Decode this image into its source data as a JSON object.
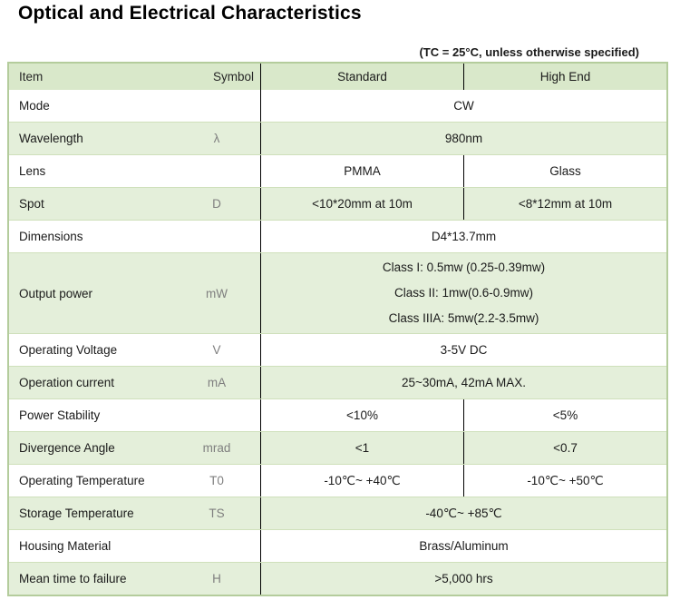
{
  "page": {
    "title": "Optical and Electrical Characteristics",
    "note": "(TC = 25°C, unless otherwise specified)"
  },
  "table": {
    "headers": {
      "item": "Item",
      "symbol": "Symbol",
      "standard": "Standard",
      "high_end": "High End"
    },
    "rows": [
      {
        "item": "Mode",
        "symbol": "",
        "span": "CW",
        "shade": false
      },
      {
        "item": "Wavelength",
        "symbol": "λ",
        "span": "980nm",
        "shade": true
      },
      {
        "item": "Lens",
        "symbol": "",
        "standard": "PMMA",
        "high_end": "Glass",
        "shade": false
      },
      {
        "item": "Spot",
        "symbol": "D",
        "standard": "<10*20mm at 10m",
        "high_end": "<8*12mm at 10m",
        "shade": true
      },
      {
        "item": "Dimensions",
        "symbol": "",
        "span": "D4*13.7mm",
        "shade": false
      },
      {
        "item": "Output power",
        "symbol": "mW",
        "span_lines": [
          "Class I: 0.5mw (0.25-0.39mw)",
          "Class II: 1mw(0.6-0.9mw)",
          "Class IIIA: 5mw(2.2-3.5mw)"
        ],
        "shade": true
      },
      {
        "item": "Operating Voltage",
        "symbol": "V",
        "span": "3-5V DC",
        "shade": false
      },
      {
        "item": "Operation current",
        "symbol": "mA",
        "span": "25~30mA, 42mA MAX.",
        "shade": true
      },
      {
        "item": "Power Stability",
        "symbol": "",
        "standard": "<10%",
        "high_end": "<5%",
        "shade": false
      },
      {
        "item": "Divergence Angle",
        "symbol": "mrad",
        "standard": "<1",
        "high_end": "<0.7",
        "shade": true
      },
      {
        "item": "Operating Temperature",
        "symbol": "T0",
        "standard": "-10℃~ +40℃",
        "high_end": "-10℃~ +50℃",
        "shade": false
      },
      {
        "item": "Storage Temperature",
        "symbol": "TS",
        "span": "-40℃~ +85℃",
        "shade": true
      },
      {
        "item": "Housing Material",
        "symbol": "",
        "span": "Brass/Aluminum",
        "shade": false
      },
      {
        "item": "Mean time to failure",
        "symbol": "H",
        "span": ">5,000 hrs",
        "shade": true
      }
    ],
    "colors": {
      "header_bg": "#d9e8ca",
      "row_green": "#e4efda",
      "outer_border": "#b4cc9c",
      "row_separator": "#cfe0bb",
      "divider_black": "#000000",
      "symbol_text": "#7f7f7f",
      "body_text": "#1a1a1a"
    }
  }
}
